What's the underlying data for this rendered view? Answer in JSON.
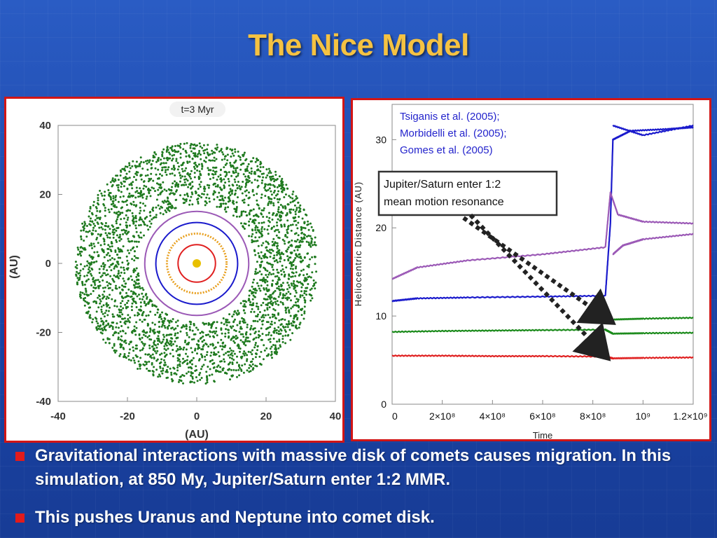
{
  "slide": {
    "title": "The Nice Model",
    "bullets": [
      "Gravitational interactions with massive disk of comets causes migration.  In this simulation, at 850 My, Jupiter/Saturn enter 1:2 MMR.",
      "This pushes Uranus and Neptune into comet disk."
    ]
  },
  "orbit_plot": {
    "time_label": "t=3 Myr",
    "xlabel": "(AU)",
    "ylabel": "(AU)",
    "x_ticks": [
      "-40",
      "-20",
      "0",
      "20",
      "40"
    ],
    "y_ticks": [
      "40",
      "20",
      "0",
      "-20",
      "-40"
    ],
    "xlim": [
      -40,
      40
    ],
    "ylim": [
      -40,
      40
    ],
    "disk_color": "#1f7a1f",
    "planet_orbits": [
      {
        "radius": 5.4,
        "color": "#e02020"
      },
      {
        "radius": 8.6,
        "color": "#e8a020"
      },
      {
        "radius": 11.8,
        "color": "#1a1acc"
      },
      {
        "radius": 15,
        "color": "#9b59b6"
      }
    ],
    "comet_disk": {
      "inner_radius": 17,
      "outer_radius": 35
    }
  },
  "chart_data": {
    "type": "line",
    "title": "",
    "xlabel": "Time",
    "ylabel": "Heliocentric Distance (AU)",
    "y_ticks": [
      "0",
      "10",
      "20",
      "30"
    ],
    "x_ticks": [
      "0",
      "2×10⁸",
      "4×10⁸",
      "6×10⁸",
      "8×10⁸",
      "10⁹",
      "1.2×10⁹"
    ],
    "xlim": [
      0,
      1200000000
    ],
    "ylim": [
      0,
      34
    ],
    "series": [
      {
        "color": "#e02020",
        "x": [
          0,
          200000000,
          400000000,
          600000000,
          850000000,
          880000000,
          1000000000,
          1200000000
        ],
        "y": [
          5.5,
          5.5,
          5.45,
          5.45,
          5.4,
          5.2,
          5.25,
          5.3
        ]
      },
      {
        "color": "#1a8a1a",
        "x": [
          0,
          200000000,
          400000000,
          600000000,
          850000000,
          880000000,
          1000000000,
          1200000000
        ],
        "y": [
          8.2,
          8.3,
          8.35,
          8.4,
          8.45,
          8.0,
          8.05,
          8.1
        ]
      },
      {
        "color": "#1a8a1a",
        "x": [
          880000000,
          1000000000,
          1200000000
        ],
        "y": [
          9.6,
          9.7,
          9.8
        ]
      },
      {
        "color": "#1a1acc",
        "x": [
          0,
          100000000,
          300000000,
          600000000,
          850000000,
          870000000,
          880000000,
          950000000,
          1100000000,
          1200000000
        ],
        "y": [
          11.7,
          12.0,
          12.1,
          12.2,
          12.3,
          20.5,
          30.0,
          31.0,
          31.2,
          31.4
        ]
      },
      {
        "color": "#1a1acc",
        "x": [
          880000000,
          1000000000,
          1200000000
        ],
        "y": [
          31.6,
          30.5,
          31.6
        ]
      },
      {
        "color": "#9b59b6",
        "x": [
          0,
          100000000,
          300000000,
          600000000,
          850000000,
          870000000,
          900000000,
          1000000000,
          1200000000
        ],
        "y": [
          14.2,
          15.5,
          16.3,
          17.0,
          17.8,
          24.0,
          21.5,
          20.7,
          20.5
        ]
      },
      {
        "color": "#9b59b6",
        "x": [
          880000000,
          920000000,
          1000000000,
          1200000000
        ],
        "y": [
          17.0,
          18.0,
          18.7,
          19.3
        ]
      }
    ],
    "citation": [
      "Tsiganis et al. (2005);",
      "Morbidelli et al. (2005);",
      "Gomes et al. (2005)"
    ],
    "annotation": [
      "Jupiter/Saturn enter 1:2",
      "mean motion resonance"
    ]
  }
}
